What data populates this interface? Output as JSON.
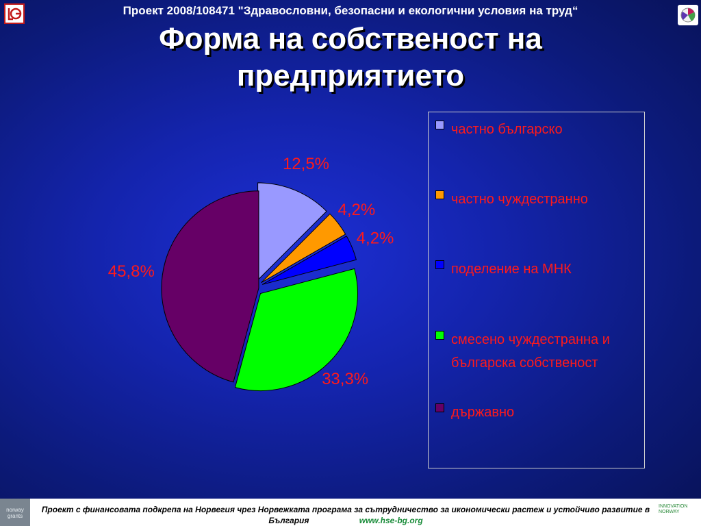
{
  "header": {
    "project_line": "Проект 2008/108471 \"Здравословни, безопасни и екологични условия на труд“",
    "title_line1": "Форма на собственост  на",
    "title_line2": "предприятието"
  },
  "chart_data": {
    "type": "pie",
    "categories": [
      "частно българско",
      "частно чуждестранно",
      "поделение на МНК",
      "смесено чуждестранна и българска собственост",
      "държавно"
    ],
    "values": [
      12.5,
      4.2,
      4.2,
      33.3,
      45.8
    ],
    "data_labels": [
      "12,5%",
      "4,2%",
      "4,2%",
      "33,3%",
      "45,8%"
    ],
    "colors": [
      "#9999ff",
      "#ff9900",
      "#0000ff",
      "#00ff00",
      "#660066"
    ],
    "label_color": "#ff1a1a",
    "legend_position": "right",
    "exploded": true
  },
  "legend": {
    "items": [
      {
        "label": "частно българско",
        "color": "#9999ff"
      },
      {
        "label": "частно чуждестранно",
        "color": "#ff9900"
      },
      {
        "label": "поделение на МНК",
        "color": "#0000ff"
      },
      {
        "label": "смесено чуждестранна и българска собственост",
        "color": "#00ff00"
      },
      {
        "label": "държавно",
        "color": "#660066"
      }
    ]
  },
  "footer": {
    "text": "Проект с финансовата подкрепа на Норвегия чрез Норвежката програма за сътрудничество за икономически растеж и устойчиво развитие в България",
    "url": "www.hse-bg.org",
    "left_logo_text": "norway grants",
    "right_logo_text": "INNOVATION NORWAY"
  },
  "icons": {
    "left_logo": "organization-logo-icon",
    "right_logo": "partner-logo-icon"
  }
}
